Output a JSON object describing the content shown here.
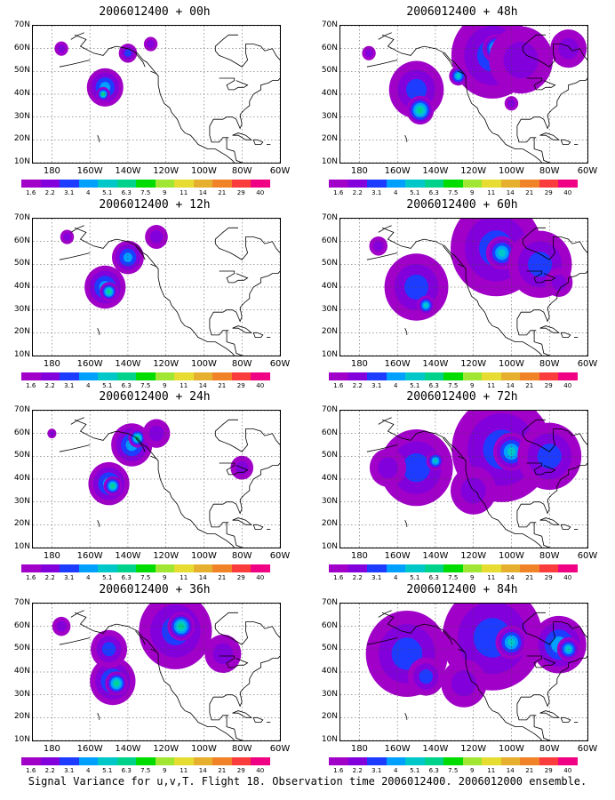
{
  "footer": "Signal Variance for u,v,T. Flight 18. Observation time 2006012400. 2006012000 ensemble.",
  "colorbar": {
    "labels": [
      "1.6",
      "2.2",
      "3.1",
      "4",
      "5.1",
      "6.3",
      "7.5",
      "9",
      "11",
      "14",
      "21",
      "29",
      "40"
    ],
    "colors": [
      "#a000c8",
      "#8200dc",
      "#1e3cff",
      "#00a0ff",
      "#00c8c8",
      "#00d28c",
      "#00dc00",
      "#a0e632",
      "#e6dc32",
      "#e6af2d",
      "#f08228",
      "#fa3c3c",
      "#f00082"
    ]
  },
  "axes": {
    "y_ticks": [
      "70N",
      "60N",
      "50N",
      "40N",
      "30N",
      "20N",
      "10N"
    ],
    "x_ticks": [
      "180",
      "160W",
      "140W",
      "120W",
      "100W",
      "80W",
      "60W"
    ]
  },
  "chart_data": [
    {
      "type": "heatmap",
      "title": "2006012400 + 00h",
      "variable": "Signal Variance for u,v,T",
      "blobs": [
        {
          "lon": -152,
          "lat": 43,
          "r": 8,
          "level": 3
        },
        {
          "lon": -153,
          "lat": 40,
          "r": 3,
          "level": 5
        },
        {
          "lon": -140,
          "lat": 58,
          "r": 4,
          "level": 2
        },
        {
          "lon": -128,
          "lat": 62,
          "r": 3,
          "level": 1
        },
        {
          "lon": -175,
          "lat": 60,
          "r": 3,
          "level": 1
        }
      ]
    },
    {
      "type": "heatmap",
      "title": "2006012400 + 48h",
      "variable": "Signal Variance for u,v,T",
      "blobs": [
        {
          "lon": -150,
          "lat": 42,
          "r": 12,
          "level": 2
        },
        {
          "lon": -148,
          "lat": 33,
          "r": 6,
          "level": 5
        },
        {
          "lon": -110,
          "lat": 57,
          "r": 18,
          "level": 2
        },
        {
          "lon": -108,
          "lat": 60,
          "r": 6,
          "level": 5
        },
        {
          "lon": -128,
          "lat": 48,
          "r": 4,
          "level": 4
        },
        {
          "lon": -95,
          "lat": 55,
          "r": 14,
          "level": 1
        },
        {
          "lon": -100,
          "lat": 36,
          "r": 3,
          "level": 1
        },
        {
          "lon": -175,
          "lat": 58,
          "r": 3,
          "level": 1
        },
        {
          "lon": -70,
          "lat": 60,
          "r": 8,
          "level": 1
        }
      ]
    },
    {
      "type": "heatmap",
      "title": "2006012400 + 12h",
      "variable": "Signal Variance for u,v,T",
      "blobs": [
        {
          "lon": -152,
          "lat": 40,
          "r": 9,
          "level": 3
        },
        {
          "lon": -150,
          "lat": 38,
          "r": 4,
          "level": 5
        },
        {
          "lon": -140,
          "lat": 53,
          "r": 7,
          "level": 3
        },
        {
          "lon": -125,
          "lat": 62,
          "r": 5,
          "level": 1
        },
        {
          "lon": -172,
          "lat": 62,
          "r": 3,
          "level": 1
        }
      ]
    },
    {
      "type": "heatmap",
      "title": "2006012400 + 60h",
      "variable": "Signal Variance for u,v,T",
      "blobs": [
        {
          "lon": -150,
          "lat": 40,
          "r": 14,
          "level": 2
        },
        {
          "lon": -145,
          "lat": 32,
          "r": 4,
          "level": 4
        },
        {
          "lon": -108,
          "lat": 57,
          "r": 20,
          "level": 2
        },
        {
          "lon": -105,
          "lat": 55,
          "r": 7,
          "level": 4
        },
        {
          "lon": -85,
          "lat": 50,
          "r": 14,
          "level": 2
        },
        {
          "lon": -75,
          "lat": 42,
          "r": 6,
          "level": 1
        },
        {
          "lon": -170,
          "lat": 58,
          "r": 4,
          "level": 1
        }
      ]
    },
    {
      "type": "heatmap",
      "title": "2006012400 + 24h",
      "variable": "Signal Variance for u,v,T",
      "blobs": [
        {
          "lon": -150,
          "lat": 38,
          "r": 9,
          "level": 3
        },
        {
          "lon": -148,
          "lat": 37,
          "r": 4,
          "level": 5
        },
        {
          "lon": -138,
          "lat": 55,
          "r": 9,
          "level": 3
        },
        {
          "lon": -135,
          "lat": 58,
          "r": 4,
          "level": 5
        },
        {
          "lon": -125,
          "lat": 60,
          "r": 6,
          "level": 1
        },
        {
          "lon": -80,
          "lat": 45,
          "r": 5,
          "level": 1
        },
        {
          "lon": -180,
          "lat": 60,
          "r": 2,
          "level": 1
        }
      ]
    },
    {
      "type": "heatmap",
      "title": "2006012400 + 72h",
      "variable": "Signal Variance for u,v,T",
      "blobs": [
        {
          "lon": -150,
          "lat": 45,
          "r": 16,
          "level": 2
        },
        {
          "lon": -140,
          "lat": 48,
          "r": 4,
          "level": 4
        },
        {
          "lon": -105,
          "lat": 53,
          "r": 22,
          "level": 2
        },
        {
          "lon": -100,
          "lat": 52,
          "r": 8,
          "level": 4
        },
        {
          "lon": -80,
          "lat": 50,
          "r": 14,
          "level": 2
        },
        {
          "lon": -165,
          "lat": 45,
          "r": 8,
          "level": 1
        },
        {
          "lon": -120,
          "lat": 35,
          "r": 10,
          "level": 1
        }
      ]
    },
    {
      "type": "heatmap",
      "title": "2006012400 + 36h",
      "variable": "Signal Variance for u,v,T",
      "blobs": [
        {
          "lon": -148,
          "lat": 36,
          "r": 10,
          "level": 3
        },
        {
          "lon": -146,
          "lat": 35,
          "r": 5,
          "level": 5
        },
        {
          "lon": -150,
          "lat": 50,
          "r": 8,
          "level": 2
        },
        {
          "lon": -115,
          "lat": 58,
          "r": 16,
          "level": 2
        },
        {
          "lon": -112,
          "lat": 60,
          "r": 6,
          "level": 5
        },
        {
          "lon": -90,
          "lat": 48,
          "r": 8,
          "level": 1
        },
        {
          "lon": -175,
          "lat": 60,
          "r": 4,
          "level": 1
        }
      ]
    },
    {
      "type": "heatmap",
      "title": "2006012400 + 84h",
      "variable": "Signal Variance for u,v,T",
      "blobs": [
        {
          "lon": -155,
          "lat": 48,
          "r": 18,
          "level": 2
        },
        {
          "lon": -145,
          "lat": 38,
          "r": 8,
          "level": 2
        },
        {
          "lon": -110,
          "lat": 55,
          "r": 22,
          "level": 2
        },
        {
          "lon": -100,
          "lat": 53,
          "r": 7,
          "level": 4
        },
        {
          "lon": -75,
          "lat": 52,
          "r": 12,
          "level": 3
        },
        {
          "lon": -70,
          "lat": 50,
          "r": 5,
          "level": 4
        },
        {
          "lon": -125,
          "lat": 35,
          "r": 10,
          "level": 1
        }
      ]
    }
  ]
}
